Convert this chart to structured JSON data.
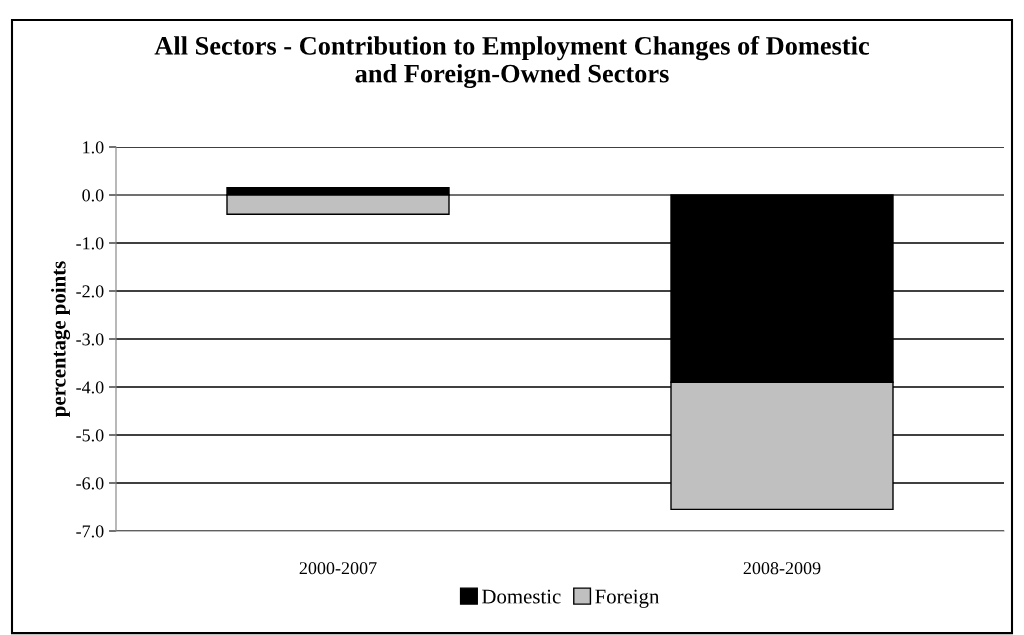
{
  "chart_data": {
    "type": "bar",
    "title": "All Sectors - Contribution to Employment Changes of Domestic\nand Foreign-Owned Sectors",
    "ylabel": "percentage points",
    "categories": [
      "2000-2007",
      "2008-2009"
    ],
    "stacked": true,
    "series": [
      {
        "name": "Domestic",
        "color": "#000000",
        "values": [
          0.15,
          -3.9
        ]
      },
      {
        "name": "Foreign",
        "color": "#c0c0c0",
        "values": [
          -0.4,
          -2.65
        ]
      }
    ],
    "ylim": [
      -7.0,
      1.0
    ],
    "yticks": [
      {
        "value": -7,
        "label": "-7.0"
      },
      {
        "value": -6,
        "label": "-6.0"
      },
      {
        "value": -5,
        "label": "-5.0"
      },
      {
        "value": -4,
        "label": "-4.0"
      },
      {
        "value": -3,
        "label": "-3.0"
      },
      {
        "value": -2,
        "label": "-2.0"
      },
      {
        "value": -1,
        "label": "-1.0"
      },
      {
        "value": 0,
        "label": "0.0"
      },
      {
        "value": 1,
        "label": "1.0"
      }
    ],
    "grid": "y",
    "legend": "bottom"
  }
}
